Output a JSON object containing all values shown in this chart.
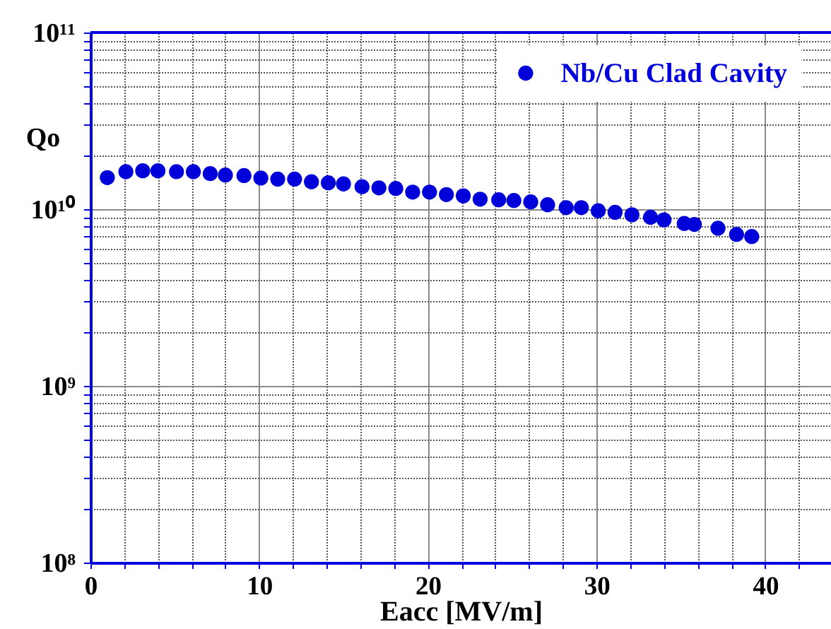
{
  "chart_data": {
    "type": "scatter",
    "xlabel": "Eacc [MV/m]",
    "ylabel": "Qo",
    "log": true,
    "grid": true,
    "legend": "top right",
    "marker": "circle",
    "xlim": [
      0,
      43.9
    ],
    "ylim": [
      100000000.0,
      100000000000.0
    ],
    "xticks": [
      0,
      {
        "value": 2,
        "label": null
      },
      {
        "value": 4,
        "label": null
      },
      {
        "value": 6,
        "label": null
      },
      {
        "value": 8,
        "label": null
      },
      10,
      {
        "value": 12,
        "label": null
      },
      {
        "value": 14,
        "label": null
      },
      {
        "value": 16,
        "label": null
      },
      {
        "value": 18,
        "label": null
      },
      20,
      {
        "value": 22,
        "label": null
      },
      {
        "value": 24,
        "label": null
      },
      {
        "value": 26,
        "label": null
      },
      {
        "value": 28,
        "label": null
      },
      30,
      {
        "value": 32,
        "label": null
      },
      {
        "value": 34,
        "label": null
      },
      {
        "value": 36,
        "label": null
      },
      {
        "value": 38,
        "label": null
      },
      40,
      {
        "value": 42,
        "label": null
      }
    ],
    "yticks": [
      {
        "value": 100000000.0,
        "label": "10⁸"
      },
      {
        "value": 200000000.0,
        "label": null
      },
      {
        "value": 300000000.0,
        "label": null
      },
      {
        "value": 400000000.0,
        "label": null
      },
      {
        "value": 500000000.0,
        "label": null
      },
      {
        "value": 600000000.0,
        "label": null
      },
      {
        "value": 700000000.0,
        "label": null
      },
      {
        "value": 800000000.0,
        "label": null
      },
      {
        "value": 900000000.0,
        "label": null
      },
      {
        "value": 1000000000.0,
        "label": "10⁹"
      },
      {
        "value": 2000000000.0,
        "label": null
      },
      {
        "value": 3000000000.0,
        "label": null
      },
      {
        "value": 4000000000.0,
        "label": null
      },
      {
        "value": 5000000000.0,
        "label": null
      },
      {
        "value": 6000000000.0,
        "label": null
      },
      {
        "value": 7000000000.0,
        "label": null
      },
      {
        "value": 8000000000.0,
        "label": null
      },
      {
        "value": 9000000000.0,
        "label": null
      },
      {
        "value": 10000000000.0,
        "label": "10¹⁰"
      },
      {
        "value": 20000000000.0,
        "label": null
      },
      {
        "value": 30000000000.0,
        "label": null
      },
      {
        "value": 40000000000.0,
        "label": null
      },
      {
        "value": 50000000000.0,
        "label": null
      },
      {
        "value": 60000000000.0,
        "label": null
      },
      {
        "value": 70000000000.0,
        "label": null
      },
      {
        "value": 80000000000.0,
        "label": null
      },
      {
        "value": 90000000000.0,
        "label": null
      },
      {
        "value": 100000000000.0,
        "label": "10¹¹"
      }
    ],
    "x": [
      1.0,
      2.1,
      3.1,
      4.0,
      5.1,
      6.1,
      7.1,
      8.0,
      9.1,
      10.1,
      11.1,
      12.1,
      13.1,
      14.1,
      15.0,
      16.1,
      17.1,
      18.1,
      19.1,
      20.1,
      21.1,
      22.1,
      23.1,
      24.2,
      25.1,
      26.1,
      27.1,
      28.2,
      29.1,
      30.1,
      31.1,
      32.1,
      33.2,
      34.0,
      35.2,
      35.8,
      37.2,
      38.3,
      39.2
    ],
    "series": [
      {
        "name": "Nb/Cu Clad Cavity",
        "color": "#0000d8",
        "values": [
          15100000000.0,
          16300000000.0,
          16500000000.0,
          16500000000.0,
          16300000000.0,
          16300000000.0,
          15900000000.0,
          15600000000.0,
          15500000000.0,
          15000000000.0,
          14800000000.0,
          14800000000.0,
          14300000000.0,
          14100000000.0,
          13900000000.0,
          13400000000.0,
          13200000000.0,
          13100000000.0,
          12500000000.0,
          12500000000.0,
          12100000000.0,
          11900000000.0,
          11400000000.0,
          11300000000.0,
          11200000000.0,
          11000000000.0,
          10600000000.0,
          10200000000.0,
          10200000000.0,
          9800000000.0,
          9600000000.0,
          9300000000.0,
          9000000000.0,
          8700000000.0,
          8300000000.0,
          8200000000.0,
          7800000000.0,
          7200000000.0,
          7000000000.0
        ]
      }
    ]
  }
}
